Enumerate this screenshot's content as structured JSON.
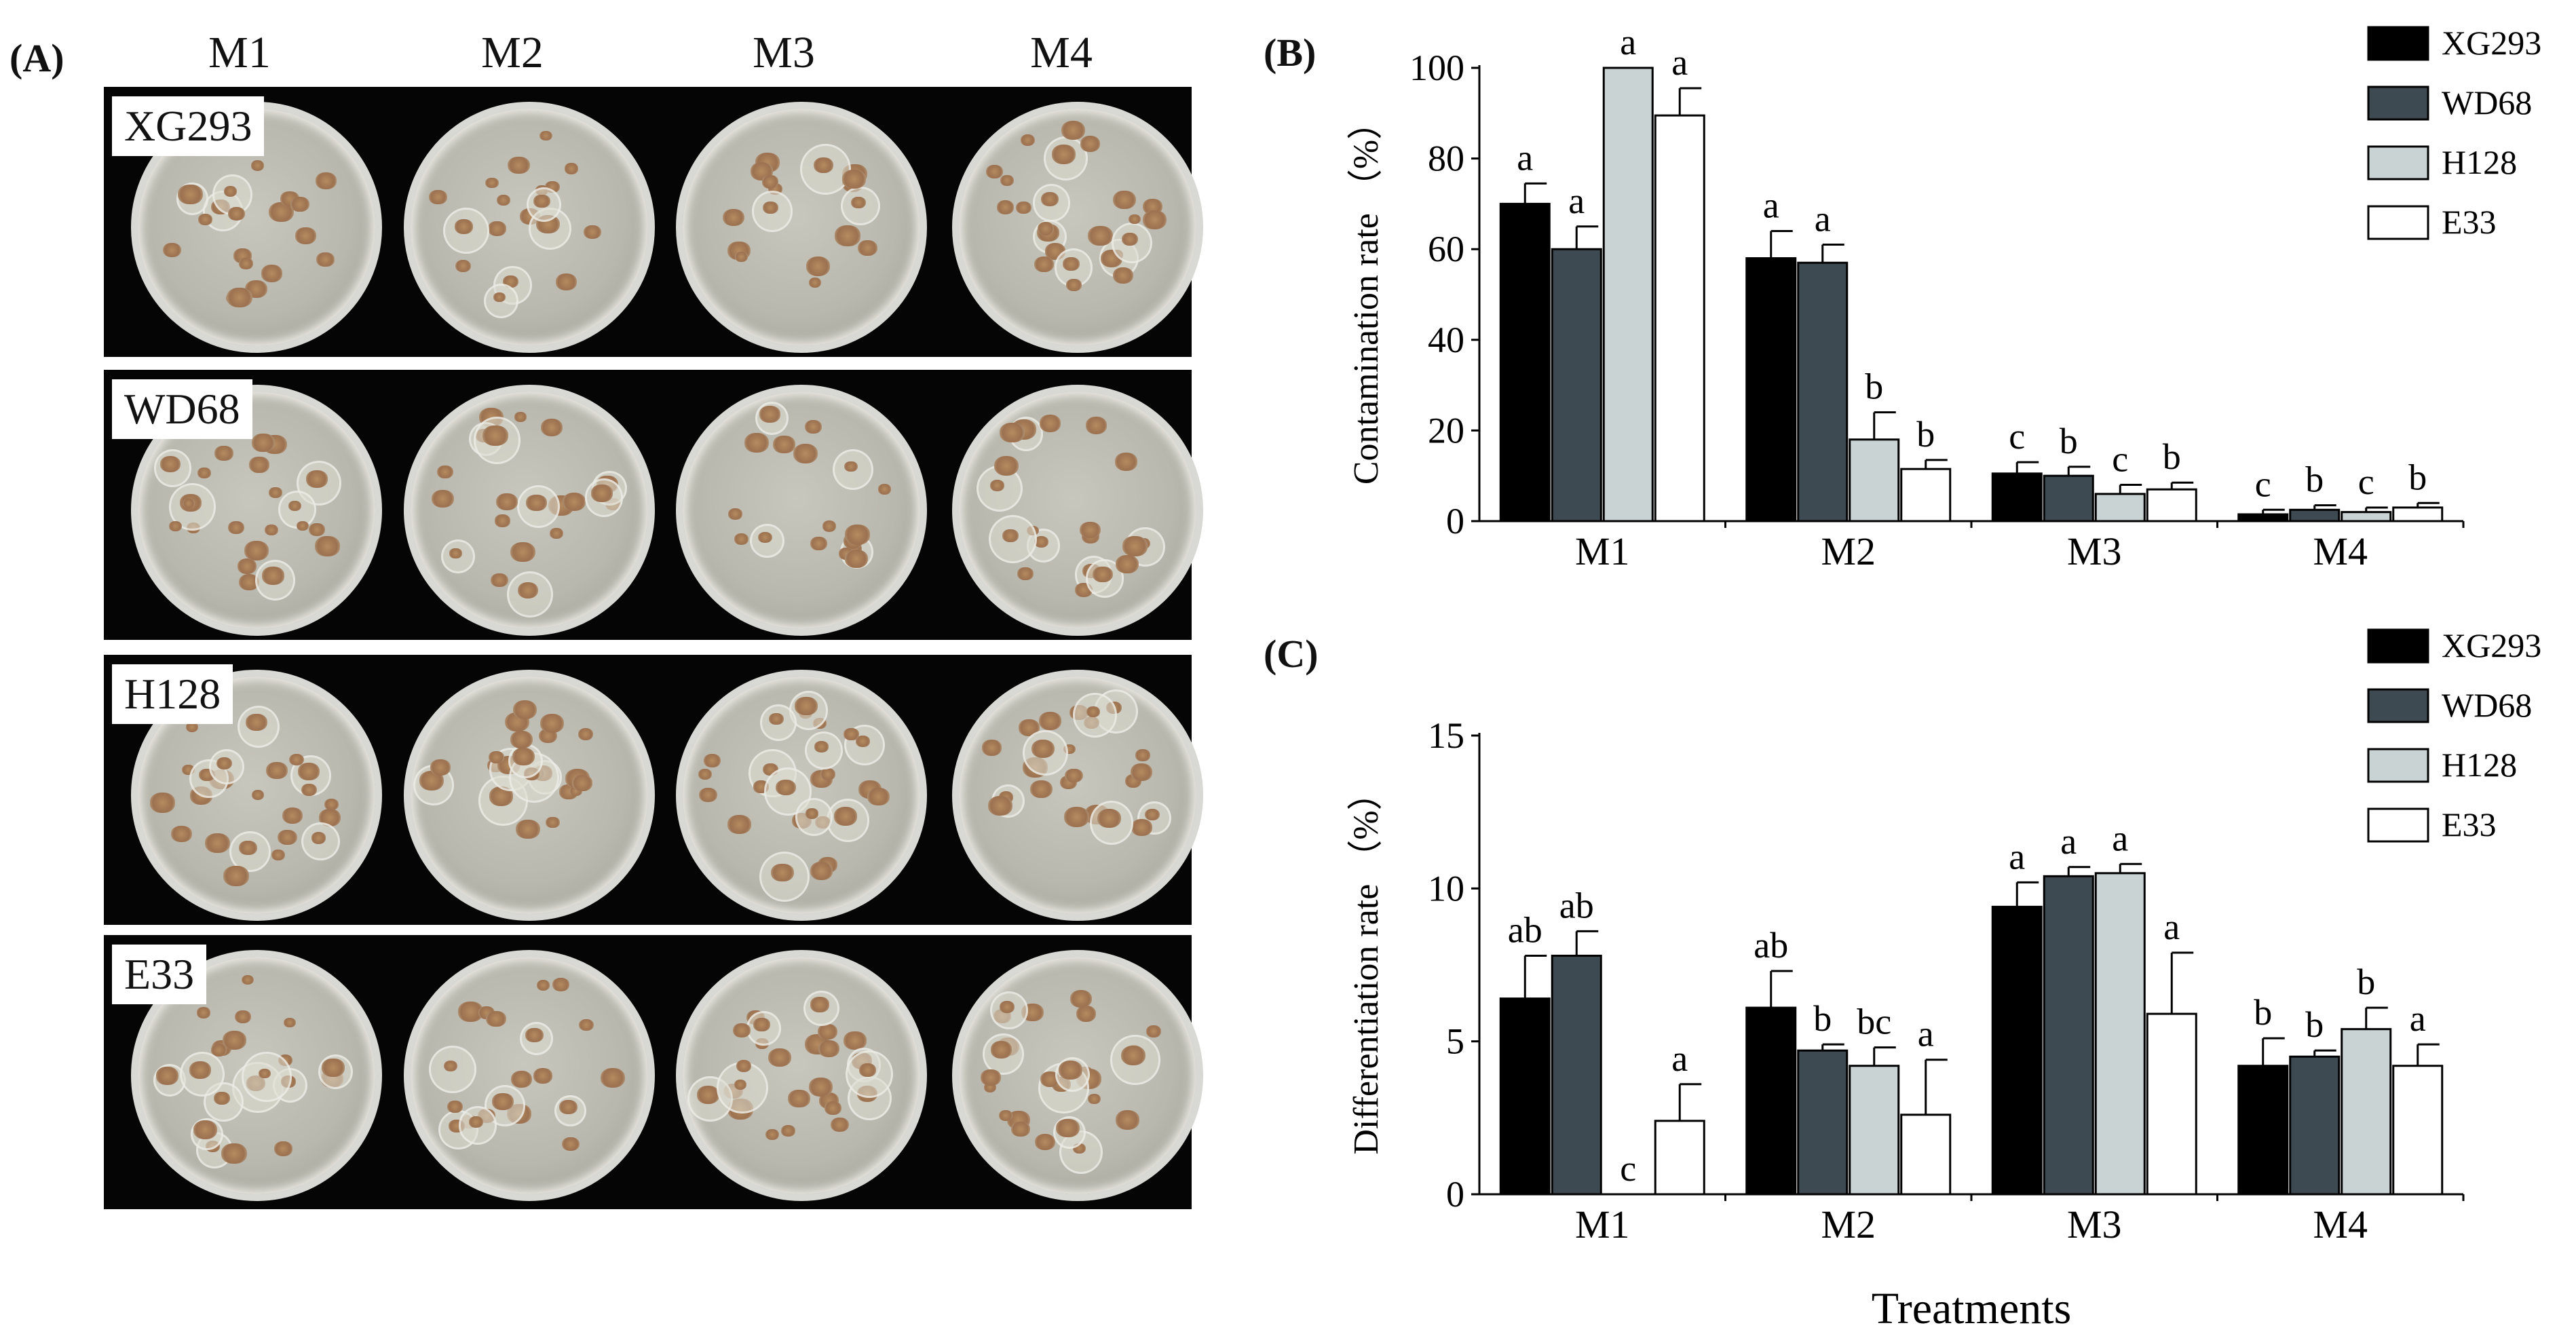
{
  "panels": {
    "a": "(A)",
    "b": "(B)",
    "c": "(C)"
  },
  "media": [
    "M1",
    "M2",
    "M3",
    "M4"
  ],
  "genotypes": [
    "XG293",
    "WD68",
    "H128",
    "E33"
  ],
  "colors": {
    "XG293": "#000000",
    "WD68": "#3e4a52",
    "H128": "#c9d3d4",
    "E33": "#ffffff"
  },
  "chart_data": [
    {
      "type": "bar",
      "panel": "B",
      "categories": [
        "M1",
        "M2",
        "M3",
        "M4"
      ],
      "ylabel": "Contamination rate （%）",
      "ylim": [
        0,
        100
      ],
      "yticks": [
        0,
        20,
        40,
        60,
        80,
        100
      ],
      "legend": "top-right",
      "series": [
        {
          "name": "XG293",
          "values": [
            70,
            58,
            10.5,
            1.5
          ],
          "errors": [
            4.5,
            6,
            2.5,
            1
          ],
          "labels": [
            "a",
            "a",
            "c",
            "c"
          ]
        },
        {
          "name": "WD68",
          "values": [
            60,
            57,
            10,
            2.5
          ],
          "errors": [
            5,
            4,
            2,
            1
          ],
          "labels": [
            "a",
            "a",
            "b",
            "b"
          ]
        },
        {
          "name": "H128",
          "values": [
            100,
            18,
            6,
            2
          ],
          "errors": [
            0,
            6,
            2,
            1
          ],
          "labels": [
            "a",
            "b",
            "c",
            "c"
          ]
        },
        {
          "name": "E33",
          "values": [
            89.5,
            11.5,
            7,
            3
          ],
          "errors": [
            6,
            2,
            1.5,
            1
          ],
          "labels": [
            "a",
            "b",
            "b",
            "b"
          ]
        }
      ]
    },
    {
      "type": "bar",
      "panel": "C",
      "categories": [
        "M1",
        "M2",
        "M3",
        "M4"
      ],
      "xlabel": "Treatments",
      "ylabel": "Differentiation rate （%）",
      "ylim": [
        0,
        15
      ],
      "yticks": [
        0,
        5,
        10,
        15
      ],
      "legend": "top-right",
      "series": [
        {
          "name": "XG293",
          "values": [
            6.4,
            6.1,
            9.4,
            4.2
          ],
          "errors": [
            1.4,
            1.2,
            0.8,
            0.9
          ],
          "labels": [
            "ab",
            "ab",
            "a",
            "b"
          ]
        },
        {
          "name": "WD68",
          "values": [
            7.8,
            4.7,
            10.4,
            4.5
          ],
          "errors": [
            0.8,
            0.2,
            0.3,
            0.2
          ],
          "labels": [
            "ab",
            "b",
            "a",
            "b"
          ]
        },
        {
          "name": "H128",
          "values": [
            0,
            4.2,
            10.5,
            5.4
          ],
          "errors": [
            0,
            0.6,
            0.3,
            0.7
          ],
          "labels": [
            "c",
            "bc",
            "a",
            "b"
          ]
        },
        {
          "name": "E33",
          "values": [
            2.4,
            2.6,
            5.9,
            4.2
          ],
          "errors": [
            1.2,
            1.8,
            2.0,
            0.7
          ],
          "labels": [
            "a",
            "a",
            "a",
            "a"
          ]
        }
      ]
    }
  ]
}
